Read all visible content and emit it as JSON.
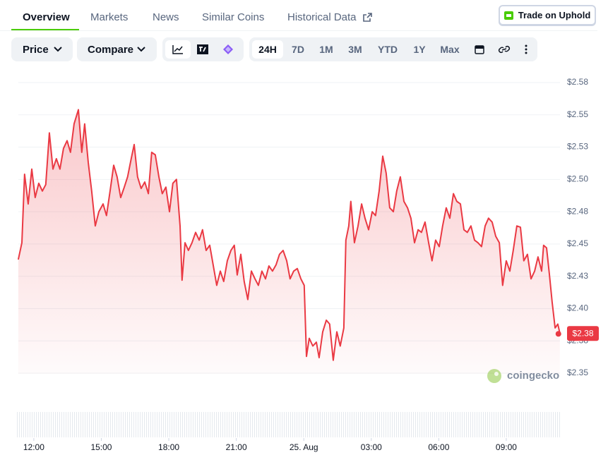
{
  "tabs": [
    "Overview",
    "Markets",
    "News",
    "Similar Coins",
    "Historical Data"
  ],
  "trade_button": "Trade on Uphold",
  "toolbar": {
    "dropdowns": [
      "Price",
      "Compare"
    ],
    "ranges": [
      "24H",
      "7D",
      "1M",
      "3M",
      "YTD",
      "1Y",
      "Max"
    ]
  },
  "watermark": "coingecko",
  "chart_data": {
    "type": "line",
    "color": "#ea3943",
    "grid": true,
    "x": [
      11.31,
      11.47,
      11.59,
      11.75,
      11.91,
      12.06,
      12.22,
      12.38,
      12.53,
      12.69,
      12.85,
      13.0,
      13.16,
      13.32,
      13.48,
      13.63,
      13.79,
      13.98,
      14.13,
      14.26,
      14.42,
      14.57,
      14.73,
      14.89,
      15.08,
      15.23,
      15.39,
      15.55,
      15.7,
      15.86,
      16.02,
      16.17,
      16.33,
      16.46,
      16.61,
      16.77,
      16.93,
      17.09,
      17.24,
      17.4,
      17.56,
      17.71,
      17.87,
      18.03,
      18.18,
      18.34,
      18.5,
      18.59,
      18.72,
      18.87,
      19.03,
      19.19,
      19.35,
      19.5,
      19.66,
      19.82,
      19.97,
      20.13,
      20.29,
      20.44,
      20.6,
      20.76,
      20.91,
      21.04,
      21.2,
      21.35,
      21.51,
      21.67,
      21.83,
      21.98,
      22.14,
      22.3,
      22.45,
      22.61,
      22.77,
      22.92,
      23.08,
      23.24,
      23.39,
      23.55,
      23.71,
      23.87,
      24.02,
      24.12,
      24.24,
      24.4,
      24.56,
      24.68,
      24.84,
      25.0,
      25.15,
      25.31,
      25.47,
      25.62,
      25.78,
      25.87,
      26.0,
      26.09,
      26.25,
      26.41,
      26.57,
      26.72,
      26.88,
      27.04,
      27.19,
      27.35,
      27.51,
      27.66,
      27.82,
      27.98,
      28.13,
      28.29,
      28.45,
      28.61,
      28.76,
      28.92,
      29.08,
      29.23,
      29.39,
      29.55,
      29.7,
      29.86,
      30.02,
      30.17,
      30.33,
      30.49,
      30.65,
      30.8,
      30.96,
      31.12,
      31.27,
      31.43,
      31.59,
      31.74,
      31.9,
      32.06,
      32.21,
      32.37,
      32.53,
      32.69,
      32.84,
      33.0,
      33.16,
      33.31,
      33.47,
      33.63,
      33.78,
      33.94,
      34.1,
      34.26,
      34.41,
      34.57,
      34.66,
      34.79,
      34.92,
      35.04,
      35.17,
      35.29,
      35.38
    ],
    "values": [
      2.438,
      2.451,
      2.504,
      2.481,
      2.508,
      2.486,
      2.497,
      2.491,
      2.496,
      2.536,
      2.508,
      2.516,
      2.508,
      2.524,
      2.53,
      2.521,
      2.543,
      2.554,
      2.521,
      2.543,
      2.513,
      2.491,
      2.464,
      2.475,
      2.481,
      2.472,
      2.491,
      2.511,
      2.502,
      2.486,
      2.494,
      2.502,
      2.516,
      2.527,
      2.502,
      2.493,
      2.498,
      2.489,
      2.521,
      2.519,
      2.502,
      2.489,
      2.494,
      2.475,
      2.497,
      2.5,
      2.464,
      2.422,
      2.451,
      2.445,
      2.451,
      2.459,
      2.453,
      2.461,
      2.445,
      2.449,
      2.434,
      2.418,
      2.429,
      2.421,
      2.437,
      2.445,
      2.449,
      2.426,
      2.442,
      2.421,
      2.407,
      2.429,
      2.423,
      2.418,
      2.429,
      2.423,
      2.433,
      2.429,
      2.434,
      2.442,
      2.445,
      2.437,
      2.423,
      2.429,
      2.431,
      2.423,
      2.418,
      2.363,
      2.377,
      2.371,
      2.374,
      2.362,
      2.382,
      2.391,
      2.388,
      2.36,
      2.382,
      2.371,
      2.385,
      2.453,
      2.464,
      2.483,
      2.451,
      2.464,
      2.481,
      2.47,
      2.461,
      2.475,
      2.472,
      2.491,
      2.518,
      2.505,
      2.478,
      2.475,
      2.491,
      2.502,
      2.483,
      2.478,
      2.47,
      2.451,
      2.461,
      2.459,
      2.467,
      2.451,
      2.437,
      2.453,
      2.448,
      2.464,
      2.478,
      2.47,
      2.489,
      2.483,
      2.481,
      2.461,
      2.459,
      2.464,
      2.453,
      2.451,
      2.448,
      2.464,
      2.47,
      2.467,
      2.456,
      2.451,
      2.418,
      2.437,
      2.429,
      2.445,
      2.464,
      2.463,
      2.437,
      2.442,
      2.423,
      2.429,
      2.44,
      2.429,
      2.449,
      2.447,
      2.426,
      2.405,
      2.385,
      2.388,
      2.381
    ],
    "last_value_label": "$2.38",
    "xlim": [
      11.25,
      35.45
    ],
    "xticks": [
      {
        "value": 12,
        "label": "12:00"
      },
      {
        "value": 15,
        "label": "15:00"
      },
      {
        "value": 18,
        "label": "18:00"
      },
      {
        "value": 21,
        "label": "21:00"
      },
      {
        "value": 24,
        "label": "25. Aug"
      },
      {
        "value": 27,
        "label": "03:00"
      },
      {
        "value": 30,
        "label": "06:00"
      },
      {
        "value": 33,
        "label": "09:00"
      }
    ],
    "ylim": [
      2.35,
      2.575
    ],
    "yticks": [
      {
        "value": 2.35,
        "label": "$2.35"
      },
      {
        "value": 2.375,
        "label": "$2.38"
      },
      {
        "value": 2.4,
        "label": "$2.40"
      },
      {
        "value": 2.425,
        "label": "$2.43"
      },
      {
        "value": 2.45,
        "label": "$2.45"
      },
      {
        "value": 2.475,
        "label": "$2.48"
      },
      {
        "value": 2.5,
        "label": "$2.50"
      },
      {
        "value": 2.525,
        "label": "$2.53"
      },
      {
        "value": 2.55,
        "label": "$2.55"
      },
      {
        "value": 2.575,
        "label": "$2.58"
      }
    ]
  }
}
